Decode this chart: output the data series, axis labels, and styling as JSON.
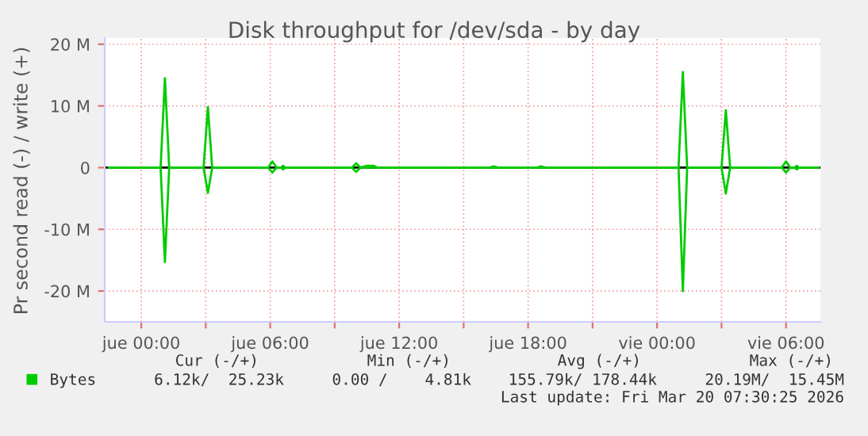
{
  "chart_data": {
    "type": "line",
    "title": "Disk throughput for /dev/sda - by day",
    "ylabel": "Pr second read (-) / write (+)",
    "x": [
      "2026-03-18T22:30",
      "2026-03-19T00:54",
      "2026-03-19T01:06",
      "2026-03-19T01:18",
      "2026-03-19T02:54",
      "2026-03-19T03:06",
      "2026-03-19T03:18",
      "2026-03-19T05:54",
      "2026-03-19T06:06",
      "2026-03-19T06:18",
      "2026-03-19T06:30",
      "2026-03-19T06:36",
      "2026-03-19T06:42",
      "2026-03-19T09:48",
      "2026-03-19T10:00",
      "2026-03-19T10:12",
      "2026-03-19T10:30",
      "2026-03-19T10:48",
      "2026-03-19T11:00",
      "2026-03-19T16:12",
      "2026-03-19T16:24",
      "2026-03-19T16:36",
      "2026-03-19T18:24",
      "2026-03-19T18:36",
      "2026-03-19T18:48",
      "2026-03-20T01:00",
      "2026-03-20T01:12",
      "2026-03-20T01:24",
      "2026-03-20T03:00",
      "2026-03-20T03:12",
      "2026-03-20T03:24",
      "2026-03-20T05:48",
      "2026-03-20T06:00",
      "2026-03-20T06:12",
      "2026-03-20T06:24",
      "2026-03-20T06:30",
      "2026-03-20T06:36",
      "2026-03-20T07:30"
    ],
    "series": [
      {
        "name": "Bytes",
        "color": "#00cc00",
        "values": [
          0,
          0,
          14.5,
          0,
          0,
          9.8,
          0,
          0,
          1.0,
          0,
          0,
          0.3,
          0,
          0,
          0.7,
          0,
          0.3,
          0.3,
          0,
          0,
          0.2,
          0,
          0,
          0.2,
          0,
          0,
          15.5,
          0,
          0,
          9.3,
          0,
          0,
          1.0,
          0,
          0,
          0.3,
          0,
          0
        ]
      },
      {
        "color": "#00cc00",
        "values": [
          0,
          0,
          -15.3,
          0,
          0,
          -4.1,
          0,
          0,
          -0.8,
          0,
          0,
          -0.3,
          0,
          0,
          -0.7,
          0,
          0,
          0,
          0,
          0,
          0,
          0,
          0,
          0,
          0,
          0,
          -20.0,
          0,
          0,
          -4.2,
          0,
          0,
          -0.8,
          0,
          0,
          -0.3,
          0,
          0
        ]
      }
    ],
    "xlim": [
      "2026-03-18T22:18",
      "2026-03-20T07:36"
    ],
    "xticks": [
      {
        "value": "2026-03-19T00:00",
        "label": "jue 00:00"
      },
      {
        "value": "2026-03-19T03:00",
        "label": null
      },
      {
        "value": "2026-03-19T06:00",
        "label": "jue 06:00"
      },
      {
        "value": "2026-03-19T09:00",
        "label": null
      },
      {
        "value": "2026-03-19T12:00",
        "label": "jue 12:00"
      },
      {
        "value": "2026-03-19T15:00",
        "label": null
      },
      {
        "value": "2026-03-19T18:00",
        "label": "jue 18:00"
      },
      {
        "value": "2026-03-19T21:00",
        "label": null
      },
      {
        "value": "2026-03-20T00:00",
        "label": "vie 00:00"
      },
      {
        "value": "2026-03-20T03:00",
        "label": null
      },
      {
        "value": "2026-03-20T06:00",
        "label": "vie 06:00"
      }
    ],
    "ylim": [
      -25,
      21
    ],
    "yticks": [
      {
        "value": -20,
        "label": "-20 M"
      },
      {
        "value": -10,
        "label": "-10 M"
      },
      0,
      {
        "value": 10,
        "label": "10 M"
      },
      {
        "value": 20,
        "label": "20 M"
      }
    ],
    "ref_lines": [
      {
        "axis": "y",
        "value": 0,
        "color": "#000000"
      }
    ],
    "grid": true,
    "legend": "bottom left",
    "line_style": "solid",
    "marker": "none",
    "annotations": [
      "Cur (-/+)",
      "Min (-/+)",
      "Avg (-/+)",
      "Max (-/+)",
      "6.12k/  25.23k",
      "0.00 /    4.81k",
      "155.79k/ 178.44k",
      "20.19M/  15.45M",
      "Last update: Fri Mar 20 07:30:25 2026"
    ]
  }
}
